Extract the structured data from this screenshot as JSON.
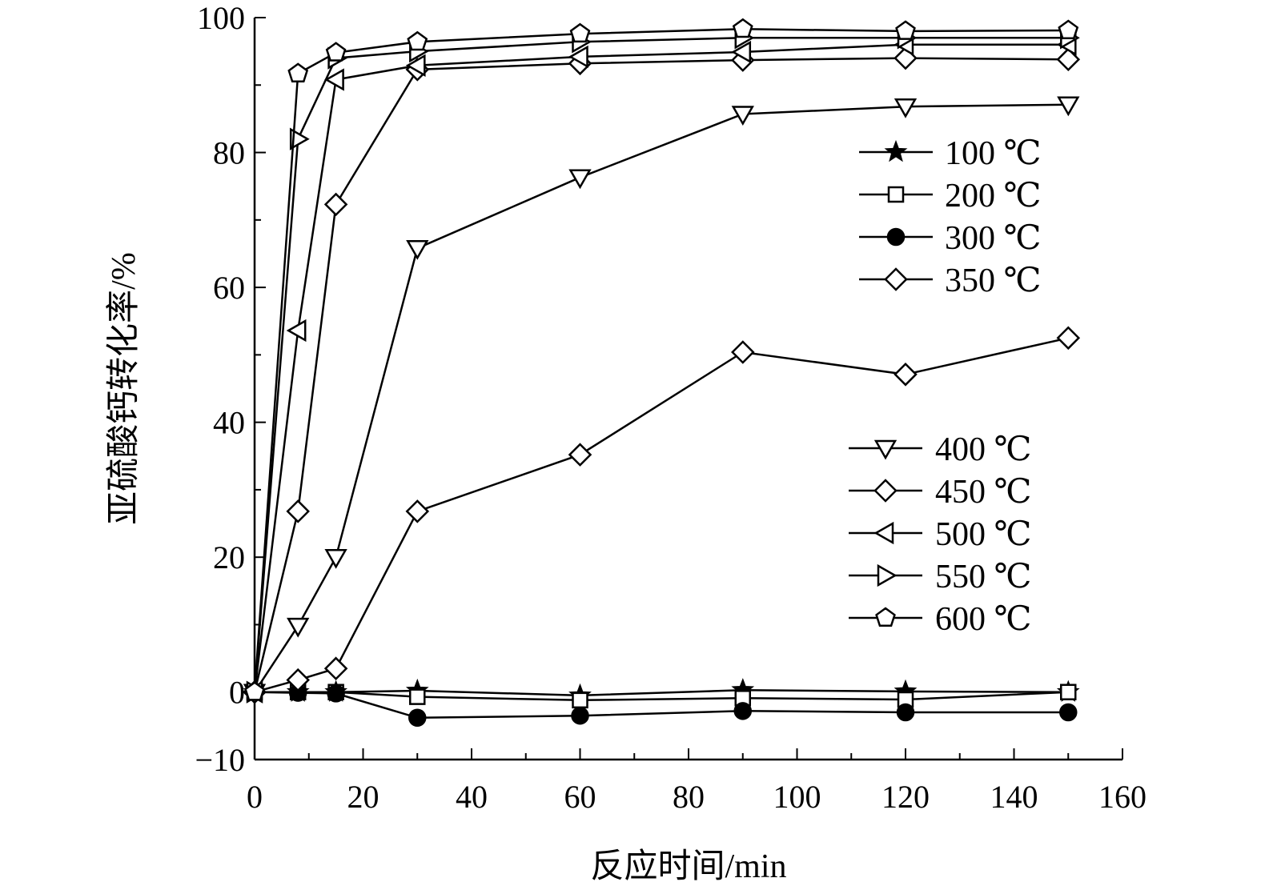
{
  "chart_data": {
    "type": "line",
    "title": "",
    "xlabel": "反应时间/min",
    "ylabel": "亚硫酸钙转化率/%",
    "xlim": [
      0,
      160
    ],
    "ylim": [
      -10,
      100
    ],
    "x_ticks": [
      0,
      20,
      40,
      60,
      80,
      100,
      120,
      140,
      160
    ],
    "y_ticks": [
      -10,
      0,
      20,
      40,
      60,
      80,
      100
    ],
    "grid": false,
    "legend_placement": "right, two groups",
    "x": [
      0,
      8,
      15,
      30,
      60,
      90,
      120,
      150
    ],
    "series": [
      {
        "name": "100 ℃",
        "marker": "star",
        "fill": "#000000",
        "values": [
          0,
          0,
          0,
          0.2,
          -0.5,
          0.3,
          0.1,
          0.0
        ]
      },
      {
        "name": "200 ℃",
        "marker": "square",
        "fill": "#ffffff",
        "values": [
          0,
          0,
          0,
          -0.7,
          -1.2,
          -0.9,
          -1.1,
          0.0
        ]
      },
      {
        "name": "300 ℃",
        "marker": "circle",
        "fill": "#000000",
        "values": [
          0,
          -0.1,
          -0.2,
          -3.8,
          -3.5,
          -2.8,
          -3.0,
          -3.0
        ]
      },
      {
        "name": "350 ℃",
        "marker": "diamond",
        "fill": "#ffffff",
        "values": [
          0,
          1.8,
          3.5,
          26.8,
          35.2,
          50.4,
          47.1,
          52.5
        ]
      },
      {
        "name": "400 ℃",
        "marker": "triangle-down",
        "fill": "#ffffff",
        "values": [
          0,
          9.8,
          20.0,
          65.8,
          76.3,
          85.7,
          86.8,
          87.1
        ]
      },
      {
        "name": "450 ℃",
        "marker": "diamond",
        "fill": "#ffffff",
        "values": [
          0,
          26.8,
          72.3,
          92.3,
          93.2,
          93.7,
          94.0,
          93.8
        ]
      },
      {
        "name": "500 ℃",
        "marker": "triangle-left",
        "fill": "#ffffff",
        "values": [
          0,
          53.6,
          90.8,
          92.9,
          94.2,
          94.9,
          96.0,
          96.0
        ]
      },
      {
        "name": "550 ℃",
        "marker": "triangle-right",
        "fill": "#ffffff",
        "values": [
          0,
          82.0,
          94.0,
          95.0,
          96.4,
          97.0,
          97.0,
          97.0
        ]
      },
      {
        "name": "600 ℃",
        "marker": "pentagon",
        "fill": "#ffffff",
        "values": [
          0,
          91.7,
          94.8,
          96.4,
          97.6,
          98.3,
          98.0,
          98.1
        ]
      }
    ],
    "legend_groups": [
      {
        "series": [
          0,
          1,
          2,
          3
        ]
      },
      {
        "series": [
          4,
          5,
          6,
          7,
          8
        ]
      }
    ]
  }
}
